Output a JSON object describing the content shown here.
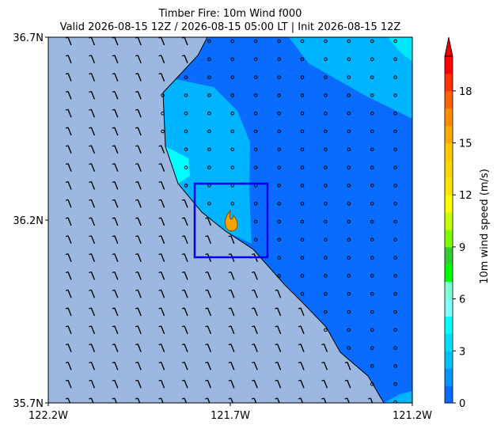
{
  "title": [
    "Timber Fire: 10m Wind f000",
    "Valid 2026-08-15 12Z / 2026-08-15 05:00 LT | Init 2026-08-15 12Z"
  ],
  "map": {
    "xlim": [
      -122.2,
      -121.2
    ],
    "xticks": [
      {
        "value": -122.2,
        "label": "122.2W"
      },
      {
        "value": -121.7,
        "label": "121.7W"
      },
      {
        "value": -121.2,
        "label": "121.2W"
      }
    ],
    "ylim": [
      35.7,
      36.7
    ],
    "yticks": [
      {
        "value": 35.7,
        "label": "35.7N"
      },
      {
        "value": 36.2,
        "label": "36.2N"
      },
      {
        "value": 36.7,
        "label": "36.7N"
      }
    ]
  },
  "colorbar": {
    "label": "10m wind speed (m/s)",
    "lim": [
      0,
      20
    ],
    "ticks": [
      0,
      3,
      6,
      9,
      12,
      15,
      18
    ],
    "colors": [
      "#0a6cff",
      "#0096ff",
      "#00c0ff",
      "#00e0ff",
      "#00ffff",
      "#80ffff",
      "#7fffd4",
      "#00ff00",
      "#32cd32",
      "#7cfc00",
      "#c8ff00",
      "#ffff00",
      "#ffe600",
      "#ffd700",
      "#ffc800",
      "#ffaa00",
      "#ff8c00",
      "#ff6400",
      "#ff3200",
      "#ff0000"
    ],
    "extend_color": "#e60000"
  }
}
